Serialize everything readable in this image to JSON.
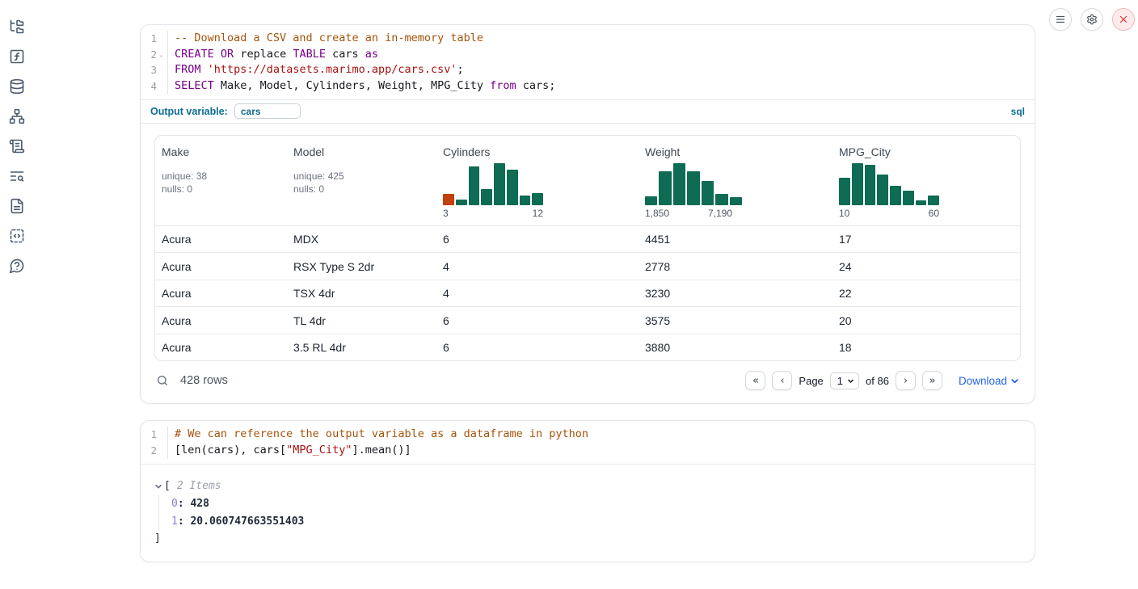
{
  "sidebar": {
    "icons": [
      {
        "name": "file-tree-icon"
      },
      {
        "name": "variables-icon"
      },
      {
        "name": "datasources-icon"
      },
      {
        "name": "dependency-graph-icon"
      },
      {
        "name": "scratchpad-icon"
      },
      {
        "name": "logs-icon"
      },
      {
        "name": "documentation-icon"
      },
      {
        "name": "snippets-icon"
      },
      {
        "name": "help-icon"
      }
    ]
  },
  "window_controls": {
    "menu": "menu-button",
    "settings": "settings-button",
    "close": "close-button"
  },
  "colors": {
    "histogram_green": "#0e6b54",
    "histogram_orange": "#c2410c",
    "accent_blue": "#0d6d93",
    "link_blue": "#2563eb",
    "keyword": "#770088",
    "string": "#aa1111",
    "comment": "#a5530a"
  },
  "sql_cell": {
    "lines": [
      {
        "n": "1",
        "fold": false,
        "tokens": [
          [
            "c",
            "-- Download a CSV and create an in-memory table"
          ]
        ]
      },
      {
        "n": "2",
        "fold": true,
        "tokens": [
          [
            "k",
            "CREATE"
          ],
          [
            "p",
            " "
          ],
          [
            "k",
            "OR"
          ],
          [
            "p",
            " replace "
          ],
          [
            "k",
            "TABLE"
          ],
          [
            "p",
            " cars "
          ],
          [
            "k",
            "as"
          ]
        ]
      },
      {
        "n": "3",
        "fold": false,
        "tokens": [
          [
            "k",
            "FROM"
          ],
          [
            "p",
            " "
          ],
          [
            "s",
            "'https://datasets.marimo.app/cars.csv'"
          ],
          [
            "p",
            ";"
          ]
        ]
      },
      {
        "n": "4",
        "fold": false,
        "tokens": [
          [
            "k",
            "SELECT"
          ],
          [
            "p",
            " Make, Model, Cylinders, Weight, MPG_City "
          ],
          [
            "k",
            "from"
          ],
          [
            "p",
            " cars;"
          ]
        ]
      }
    ],
    "output_variable": {
      "label": "Output variable:",
      "value": "cars"
    },
    "language_badge": "sql"
  },
  "table": {
    "columns": [
      {
        "name": "Make",
        "stats": [
          "unique: 38",
          "nulls: 0"
        ]
      },
      {
        "name": "Model",
        "stats": [
          "unique: 425",
          "nulls: 0"
        ]
      },
      {
        "name": "Cylinders",
        "histogram": {
          "bar_heights_pct": [
            26,
            13,
            92,
            38,
            100,
            84,
            23,
            29
          ],
          "first_bar_orange": true,
          "axis_labels": [
            "3",
            "12"
          ],
          "axis_min": 3,
          "axis_max": 12
        }
      },
      {
        "name": "Weight",
        "histogram": {
          "bar_heights_pct": [
            20,
            81,
            100,
            81,
            58,
            26,
            19
          ],
          "first_bar_orange": false,
          "axis_labels": [
            "1,850",
            "7,190"
          ],
          "axis_min": 1850,
          "axis_max": 7190,
          "labels_inset_right": true
        }
      },
      {
        "name": "MPG_City",
        "histogram": {
          "bar_heights_pct": [
            65,
            100,
            95,
            73,
            45,
            35,
            12,
            22
          ],
          "first_bar_orange": false,
          "axis_labels": [
            "10",
            "60"
          ],
          "axis_min": 10,
          "axis_max": 60
        }
      }
    ],
    "rows": [
      [
        "Acura",
        "MDX",
        "6",
        "4451",
        "17"
      ],
      [
        "Acura",
        "RSX Type S 2dr",
        "4",
        "2778",
        "24"
      ],
      [
        "Acura",
        "TSX 4dr",
        "4",
        "3230",
        "22"
      ],
      [
        "Acura",
        "TL 4dr",
        "6",
        "3575",
        "20"
      ],
      [
        "Acura",
        "3.5 RL 4dr",
        "6",
        "3880",
        "18"
      ]
    ],
    "footer": {
      "row_count": "428 rows",
      "page_label": "Page",
      "page_value": "1",
      "of_label": "of 86",
      "download_label": "Download",
      "first_page": "«",
      "prev_page": "‹",
      "next_page": "›",
      "last_page": "»"
    }
  },
  "python_cell": {
    "lines": [
      {
        "n": "1",
        "fold": false,
        "tokens": [
          [
            "c",
            "# We can reference the output variable as a dataframe in python"
          ]
        ]
      },
      {
        "n": "2",
        "fold": false,
        "tokens": [
          [
            "p",
            "[len(cars), cars["
          ],
          [
            "s",
            "\"MPG_City\""
          ],
          [
            "p",
            "].mean()]"
          ]
        ]
      }
    ]
  },
  "tree_output": {
    "open_bracket": "[",
    "items_label": "2 Items",
    "entries": [
      {
        "key": "0",
        "sep": ": ",
        "value": "428"
      },
      {
        "key": "1",
        "sep": ": ",
        "value": "20.060747663551403"
      }
    ],
    "close_bracket": "]"
  }
}
